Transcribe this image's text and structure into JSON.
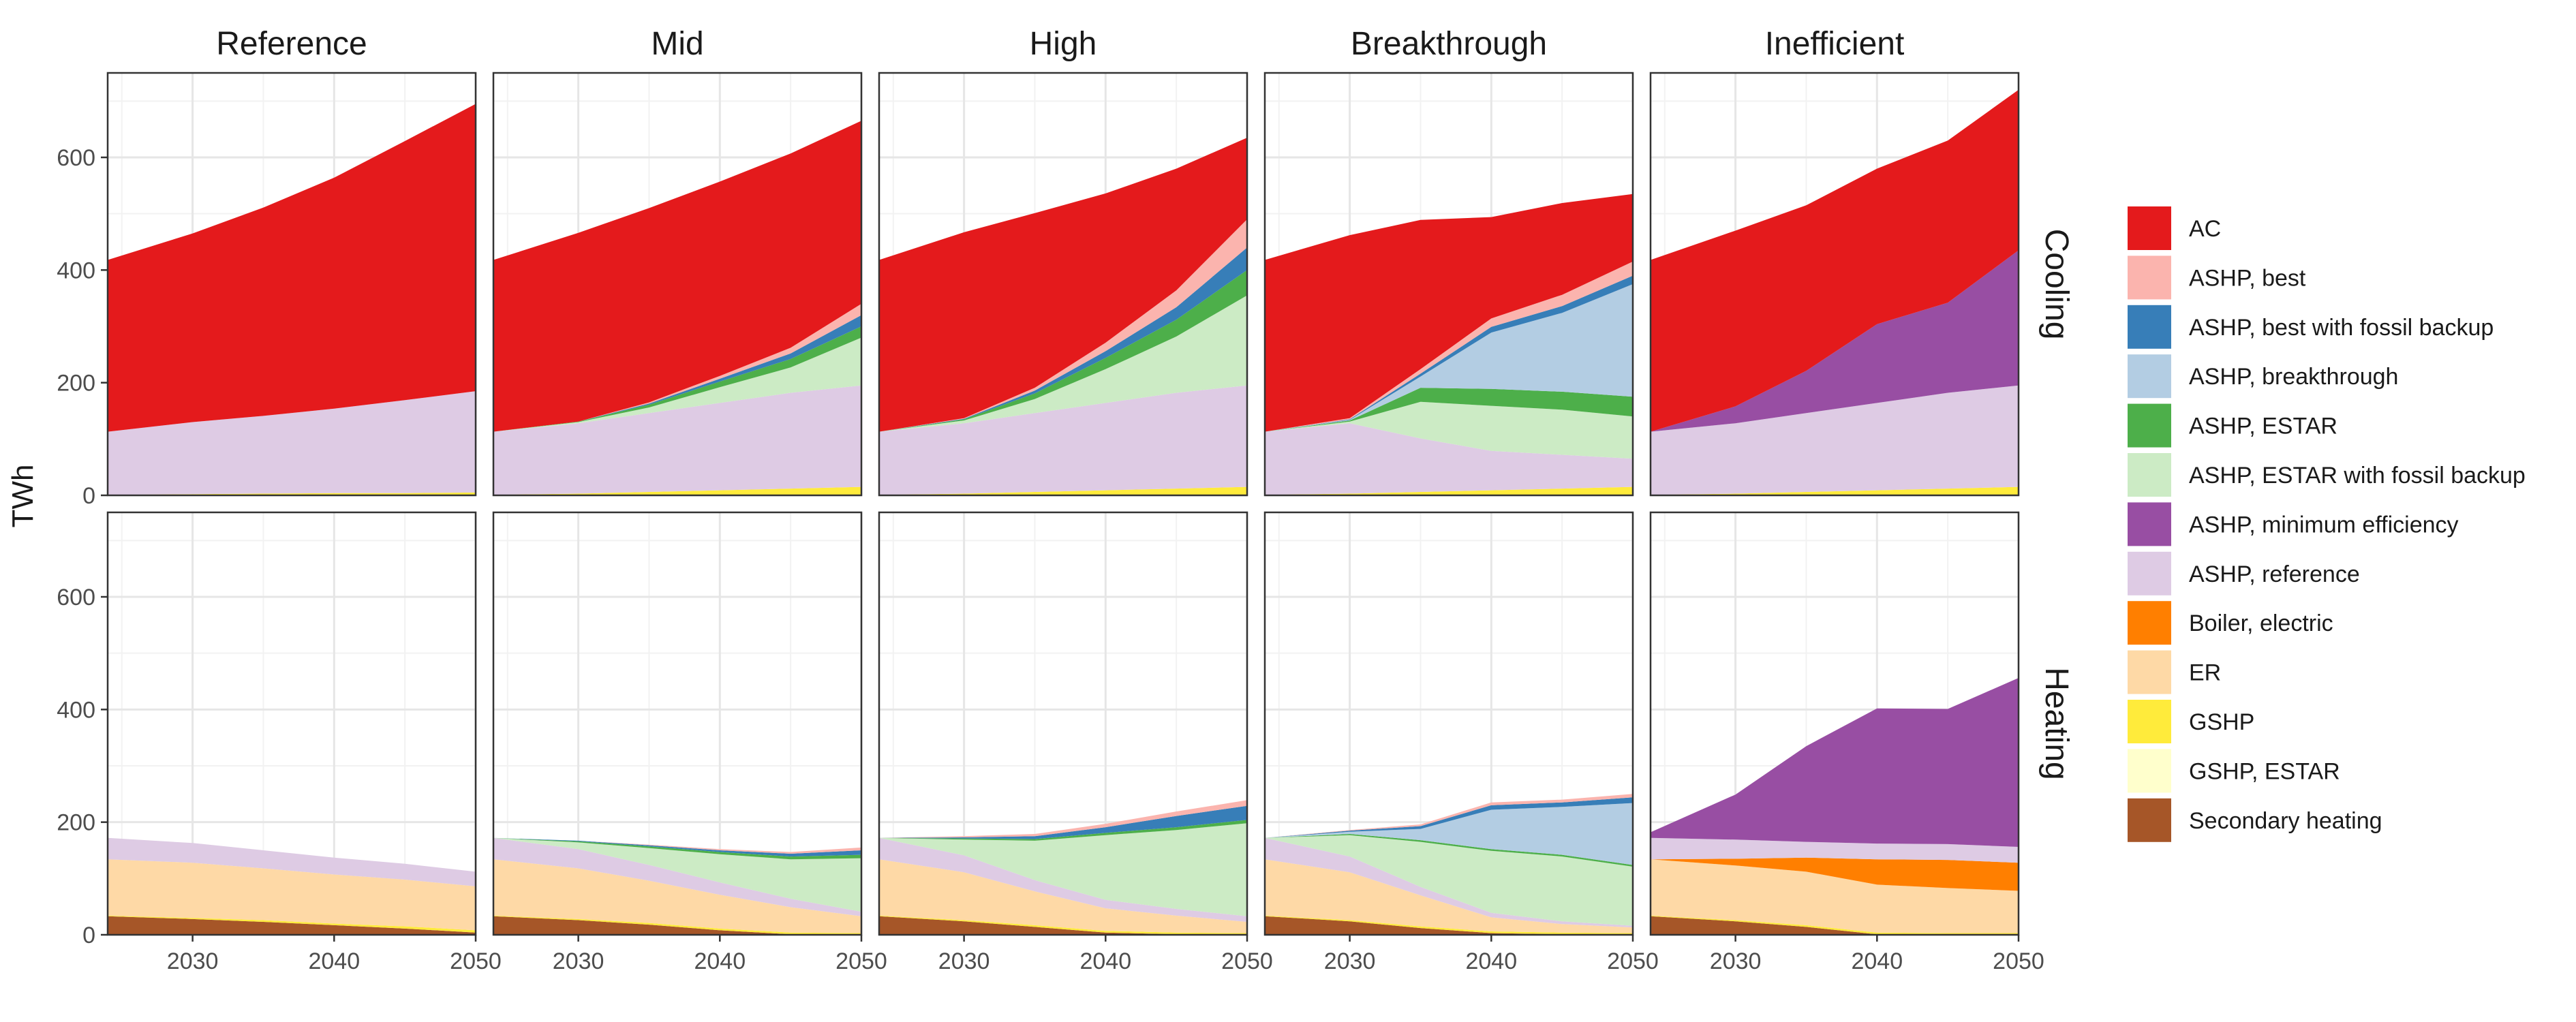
{
  "chart_data": {
    "type": "area",
    "stacked": true,
    "ylabel": "TWh",
    "xlabel": "",
    "xlim": [
      2024,
      2050
    ],
    "ylim": [
      0,
      750
    ],
    "x_ticks": [
      2030,
      2040,
      2050
    ],
    "x_tick_labels": [
      "2030",
      "2040",
      "2050"
    ],
    "y_ticks": [
      0,
      200,
      400,
      600
    ],
    "y_tick_labels": [
      "0",
      "200",
      "400",
      "600"
    ],
    "grid": true,
    "legend_position": "right",
    "x": [
      2024,
      2030,
      2035,
      2040,
      2045,
      2050
    ],
    "scenarios": [
      "Reference",
      "Mid",
      "High",
      "Breakthrough",
      "Inefficient"
    ],
    "end_uses": [
      "Cooling",
      "Heating"
    ],
    "legend": [
      {
        "name": "AC",
        "color": "#e41a1c"
      },
      {
        "name": "ASHP, best",
        "color": "#fbb4ae"
      },
      {
        "name": "ASHP, best with fossil backup",
        "color": "#377eb8"
      },
      {
        "name": "ASHP, breakthrough",
        "color": "#b3cde3"
      },
      {
        "name": "ASHP, ESTAR",
        "color": "#4daf4a"
      },
      {
        "name": "ASHP, ESTAR with fossil backup",
        "color": "#ccebc5"
      },
      {
        "name": "ASHP, minimum efficiency",
        "color": "#984ea3"
      },
      {
        "name": "ASHP, reference",
        "color": "#decbe4"
      },
      {
        "name": "Boiler, electric",
        "color": "#ff7f00"
      },
      {
        "name": "ER",
        "color": "#fed9a6"
      },
      {
        "name": "GSHP",
        "color": "#ffeb3b"
      },
      {
        "name": "GSHP, ESTAR",
        "color": "#ffffcc"
      },
      {
        "name": "Secondary heating",
        "color": "#a65628"
      }
    ],
    "panels": [
      {
        "scenario": "Reference",
        "end_use": "Cooling",
        "series": [
          {
            "name": "GSHP",
            "values": [
              1,
              2,
              3,
              4,
              4,
              5
            ]
          },
          {
            "name": "ASHP, reference",
            "values": [
              112,
              128,
              138,
              150,
              165,
              180
            ]
          },
          {
            "name": "AC",
            "values": [
              305,
              335,
              370,
              410,
              460,
              510
            ]
          }
        ]
      },
      {
        "scenario": "Mid",
        "end_use": "Cooling",
        "series": [
          {
            "name": "GSHP",
            "values": [
              1,
              3,
              6,
              9,
              12,
              15
            ]
          },
          {
            "name": "ASHP, reference",
            "values": [
              112,
              125,
              140,
              155,
              170,
              180
            ]
          },
          {
            "name": "ASHP, ESTAR with fossil backup",
            "values": [
              0,
              2,
              10,
              28,
              45,
              85
            ]
          },
          {
            "name": "ASHP, ESTAR",
            "values": [
              0,
              1,
              5,
              10,
              15,
              20
            ]
          },
          {
            "name": "ASHP, best with fossil backup",
            "values": [
              0,
              0,
              2,
              5,
              10,
              20
            ]
          },
          {
            "name": "ASHP, best",
            "values": [
              0,
              0,
              2,
              5,
              10,
              20
            ]
          },
          {
            "name": "AC",
            "values": [
              305,
              335,
              345,
              345,
              345,
              325
            ]
          }
        ]
      },
      {
        "scenario": "High",
        "end_use": "Cooling",
        "series": [
          {
            "name": "GSHP",
            "values": [
              1,
              3,
              6,
              9,
              12,
              15
            ]
          },
          {
            "name": "ASHP, reference",
            "values": [
              112,
              125,
              140,
              155,
              170,
              180
            ]
          },
          {
            "name": "ASHP, ESTAR with fossil backup",
            "values": [
              0,
              5,
              25,
              60,
              100,
              160
            ]
          },
          {
            "name": "ASHP, ESTAR",
            "values": [
              0,
              2,
              10,
              20,
              30,
              45
            ]
          },
          {
            "name": "ASHP, best with fossil backup",
            "values": [
              0,
              1,
              5,
              12,
              22,
              40
            ]
          },
          {
            "name": "ASHP, best",
            "values": [
              0,
              1,
              5,
              15,
              30,
              50
            ]
          },
          {
            "name": "AC",
            "values": [
              305,
              330,
              310,
              265,
              216,
              145
            ]
          }
        ]
      },
      {
        "scenario": "Breakthrough",
        "end_use": "Cooling",
        "series": [
          {
            "name": "GSHP",
            "values": [
              1,
              3,
              6,
              9,
              12,
              15
            ]
          },
          {
            "name": "ASHP, reference",
            "values": [
              112,
              125,
              95,
              70,
              60,
              50
            ]
          },
          {
            "name": "ASHP, ESTAR with fossil backup",
            "values": [
              0,
              3,
              65,
              80,
              80,
              75
            ]
          },
          {
            "name": "ASHP, ESTAR",
            "values": [
              0,
              2,
              25,
              30,
              32,
              35
            ]
          },
          {
            "name": "ASHP, breakthrough",
            "values": [
              0,
              1,
              20,
              100,
              140,
              200
            ]
          },
          {
            "name": "ASHP, best with fossil backup",
            "values": [
              0,
              1,
              5,
              10,
              12,
              15
            ]
          },
          {
            "name": "ASHP, best",
            "values": [
              0,
              2,
              8,
              15,
              20,
              25
            ]
          },
          {
            "name": "AC",
            "values": [
              305,
              325,
              265,
              180,
              163,
              120
            ]
          }
        ]
      },
      {
        "scenario": "Inefficient",
        "end_use": "Cooling",
        "series": [
          {
            "name": "GSHP",
            "values": [
              1,
              3,
              6,
              9,
              12,
              15
            ]
          },
          {
            "name": "ASHP, reference",
            "values": [
              112,
              125,
              140,
              155,
              170,
              180
            ]
          },
          {
            "name": "ASHP, minimum efficiency",
            "values": [
              0,
              30,
              75,
              140,
              160,
              240
            ]
          },
          {
            "name": "AC",
            "values": [
              305,
              312,
              294,
              276,
              288,
              285
            ]
          }
        ]
      },
      {
        "scenario": "Reference",
        "end_use": "Heating",
        "series": [
          {
            "name": "Secondary heating",
            "values": [
              33,
              28,
              23,
              17,
              11,
              4
            ]
          },
          {
            "name": "GSHP",
            "values": [
              1,
              2,
              3,
              3,
              4,
              4
            ]
          },
          {
            "name": "ER",
            "values": [
              100,
              98,
              92,
              87,
              83,
              78
            ]
          },
          {
            "name": "ASHP, reference",
            "values": [
              38,
              35,
              32,
              30,
              28,
              26
            ]
          }
        ]
      },
      {
        "scenario": "Mid",
        "end_use": "Heating",
        "series": [
          {
            "name": "Secondary heating",
            "values": [
              33,
              26,
              18,
              8,
              1,
              0
            ]
          },
          {
            "name": "GSHP",
            "values": [
              1,
              2,
              3,
              3,
              3,
              3
            ]
          },
          {
            "name": "ER",
            "values": [
              100,
              90,
              75,
              60,
              45,
              30
            ]
          },
          {
            "name": "ASHP, reference",
            "values": [
              38,
              34,
              28,
              22,
              15,
              8
            ]
          },
          {
            "name": "ASHP, ESTAR with fossil backup",
            "values": [
              0,
              12,
              30,
              50,
              70,
              95
            ]
          },
          {
            "name": "ASHP, ESTAR",
            "values": [
              0,
              2,
              3,
              4,
              5,
              6
            ]
          },
          {
            "name": "ASHP, best with fossil backup",
            "values": [
              0,
              1,
              2,
              3,
              5,
              8
            ]
          },
          {
            "name": "ASHP, best",
            "values": [
              0,
              0,
              1,
              2,
              3,
              5
            ]
          }
        ]
      },
      {
        "scenario": "High",
        "end_use": "Heating",
        "series": [
          {
            "name": "Secondary heating",
            "values": [
              33,
              24,
              14,
              4,
              1,
              0
            ]
          },
          {
            "name": "GSHP",
            "values": [
              1,
              2,
              3,
              3,
              3,
              3
            ]
          },
          {
            "name": "ER",
            "values": [
              100,
              85,
              60,
              40,
              30,
              20
            ]
          },
          {
            "name": "ASHP, reference",
            "values": [
              38,
              30,
              20,
              15,
              12,
              10
            ]
          },
          {
            "name": "ASHP, ESTAR with fossil backup",
            "values": [
              0,
              28,
              70,
              115,
              140,
              165
            ]
          },
          {
            "name": "ASHP, ESTAR",
            "values": [
              0,
              2,
              3,
              4,
              5,
              6
            ]
          },
          {
            "name": "ASHP, best with fossil backup",
            "values": [
              0,
              2,
              5,
              10,
              20,
              25
            ]
          },
          {
            "name": "ASHP, best",
            "values": [
              0,
              2,
              4,
              6,
              8,
              10
            ]
          }
        ]
      },
      {
        "scenario": "Breakthrough",
        "end_use": "Heating",
        "series": [
          {
            "name": "Secondary heating",
            "values": [
              33,
              24,
              12,
              3,
              1,
              0
            ]
          },
          {
            "name": "GSHP",
            "values": [
              1,
              2,
              3,
              3,
              3,
              3
            ]
          },
          {
            "name": "ER",
            "values": [
              100,
              85,
              55,
              25,
              15,
              10
            ]
          },
          {
            "name": "ASHP, reference",
            "values": [
              38,
              28,
              15,
              8,
              5,
              3
            ]
          },
          {
            "name": "ASHP, ESTAR with fossil backup",
            "values": [
              0,
              38,
              80,
              110,
              115,
              105
            ]
          },
          {
            "name": "ASHP, ESTAR",
            "values": [
              0,
              2,
              3,
              3,
              3,
              3
            ]
          },
          {
            "name": "ASHP, breakthrough",
            "values": [
              0,
              4,
              20,
              70,
              85,
              110
            ]
          },
          {
            "name": "ASHP, best with fossil backup",
            "values": [
              0,
              2,
              5,
              8,
              8,
              10
            ]
          },
          {
            "name": "ASHP, best",
            "values": [
              0,
              1,
              3,
              5,
              5,
              6
            ]
          }
        ]
      },
      {
        "scenario": "Inefficient",
        "end_use": "Heating",
        "series": [
          {
            "name": "Secondary heating",
            "values": [
              33,
              24,
              14,
              1,
              0,
              0
            ]
          },
          {
            "name": "GSHP",
            "values": [
              1,
              2,
              3,
              3,
              3,
              3
            ]
          },
          {
            "name": "ER",
            "values": [
              100,
              97,
              95,
              85,
              80,
              75
            ]
          },
          {
            "name": "Boiler, electric",
            "values": [
              0,
              12,
              25,
              45,
              50,
              50
            ]
          },
          {
            "name": "ASHP, reference",
            "values": [
              38,
              34,
              28,
              28,
              28,
              28
            ]
          },
          {
            "name": "ASHP, minimum efficiency",
            "values": [
              10,
              80,
              170,
              240,
              240,
              300
            ]
          }
        ]
      }
    ]
  }
}
